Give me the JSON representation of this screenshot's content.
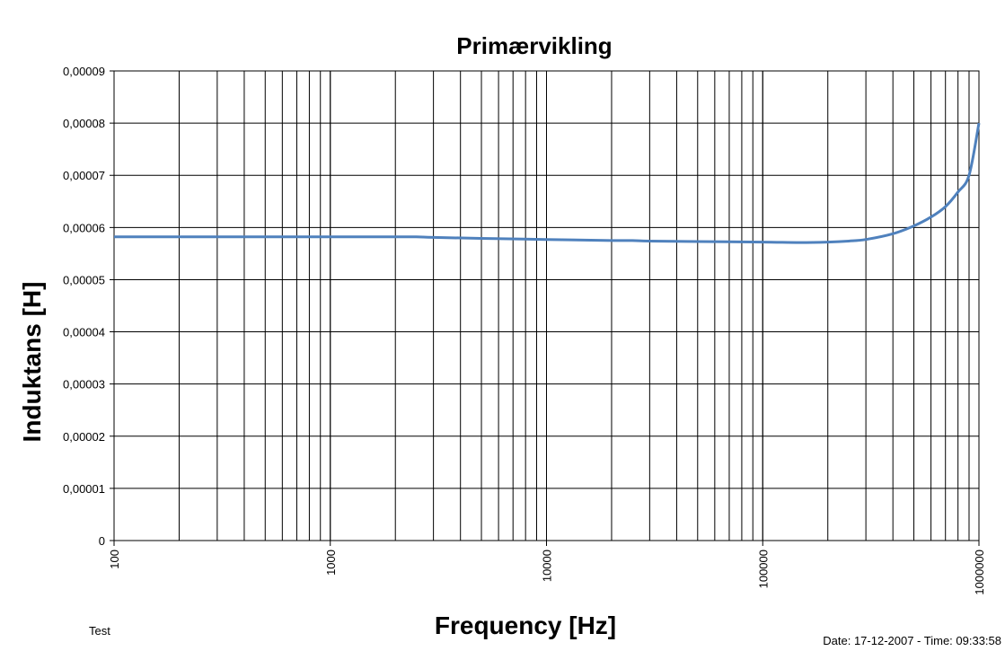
{
  "chart_data": {
    "type": "line",
    "title": "Primærvikling",
    "xlabel": "Frequency [Hz]",
    "ylabel": "Induktans [H]",
    "x_scale": "log",
    "xlim": [
      100,
      1000000
    ],
    "ylim": [
      0,
      9e-05
    ],
    "x_tick_labels": [
      "100",
      "1000",
      "10000",
      "100000",
      "1000000"
    ],
    "y_tick_labels": [
      "0",
      "0,00001",
      "0,00002",
      "0,00003",
      "0,00004",
      "0,00005",
      "0,00006",
      "0,00007",
      "0,00008",
      "0,00009"
    ],
    "grid": true,
    "line_color": "#4f81bd",
    "series": [
      {
        "x": [
          100,
          200,
          500,
          1000,
          2000,
          2500,
          3000,
          5000,
          10000,
          20000,
          25000,
          30000,
          50000,
          100000,
          150000,
          200000,
          250000,
          300000,
          400000,
          500000,
          600000,
          700000,
          800000,
          900000,
          1000000
        ],
        "values": [
          5.82e-05,
          5.82e-05,
          5.82e-05,
          5.82e-05,
          5.82e-05,
          5.82e-05,
          5.81e-05,
          5.79e-05,
          5.77e-05,
          5.75e-05,
          5.75e-05,
          5.74e-05,
          5.73e-05,
          5.72e-05,
          5.71e-05,
          5.72e-05,
          5.74e-05,
          5.77e-05,
          5.88e-05,
          6.03e-05,
          6.2e-05,
          6.4e-05,
          6.68e-05,
          7e-05,
          8e-05
        ]
      }
    ]
  },
  "footer": {
    "left": "Test",
    "right": "Date: 17-12-2007 - Time: 09:33:58"
  }
}
